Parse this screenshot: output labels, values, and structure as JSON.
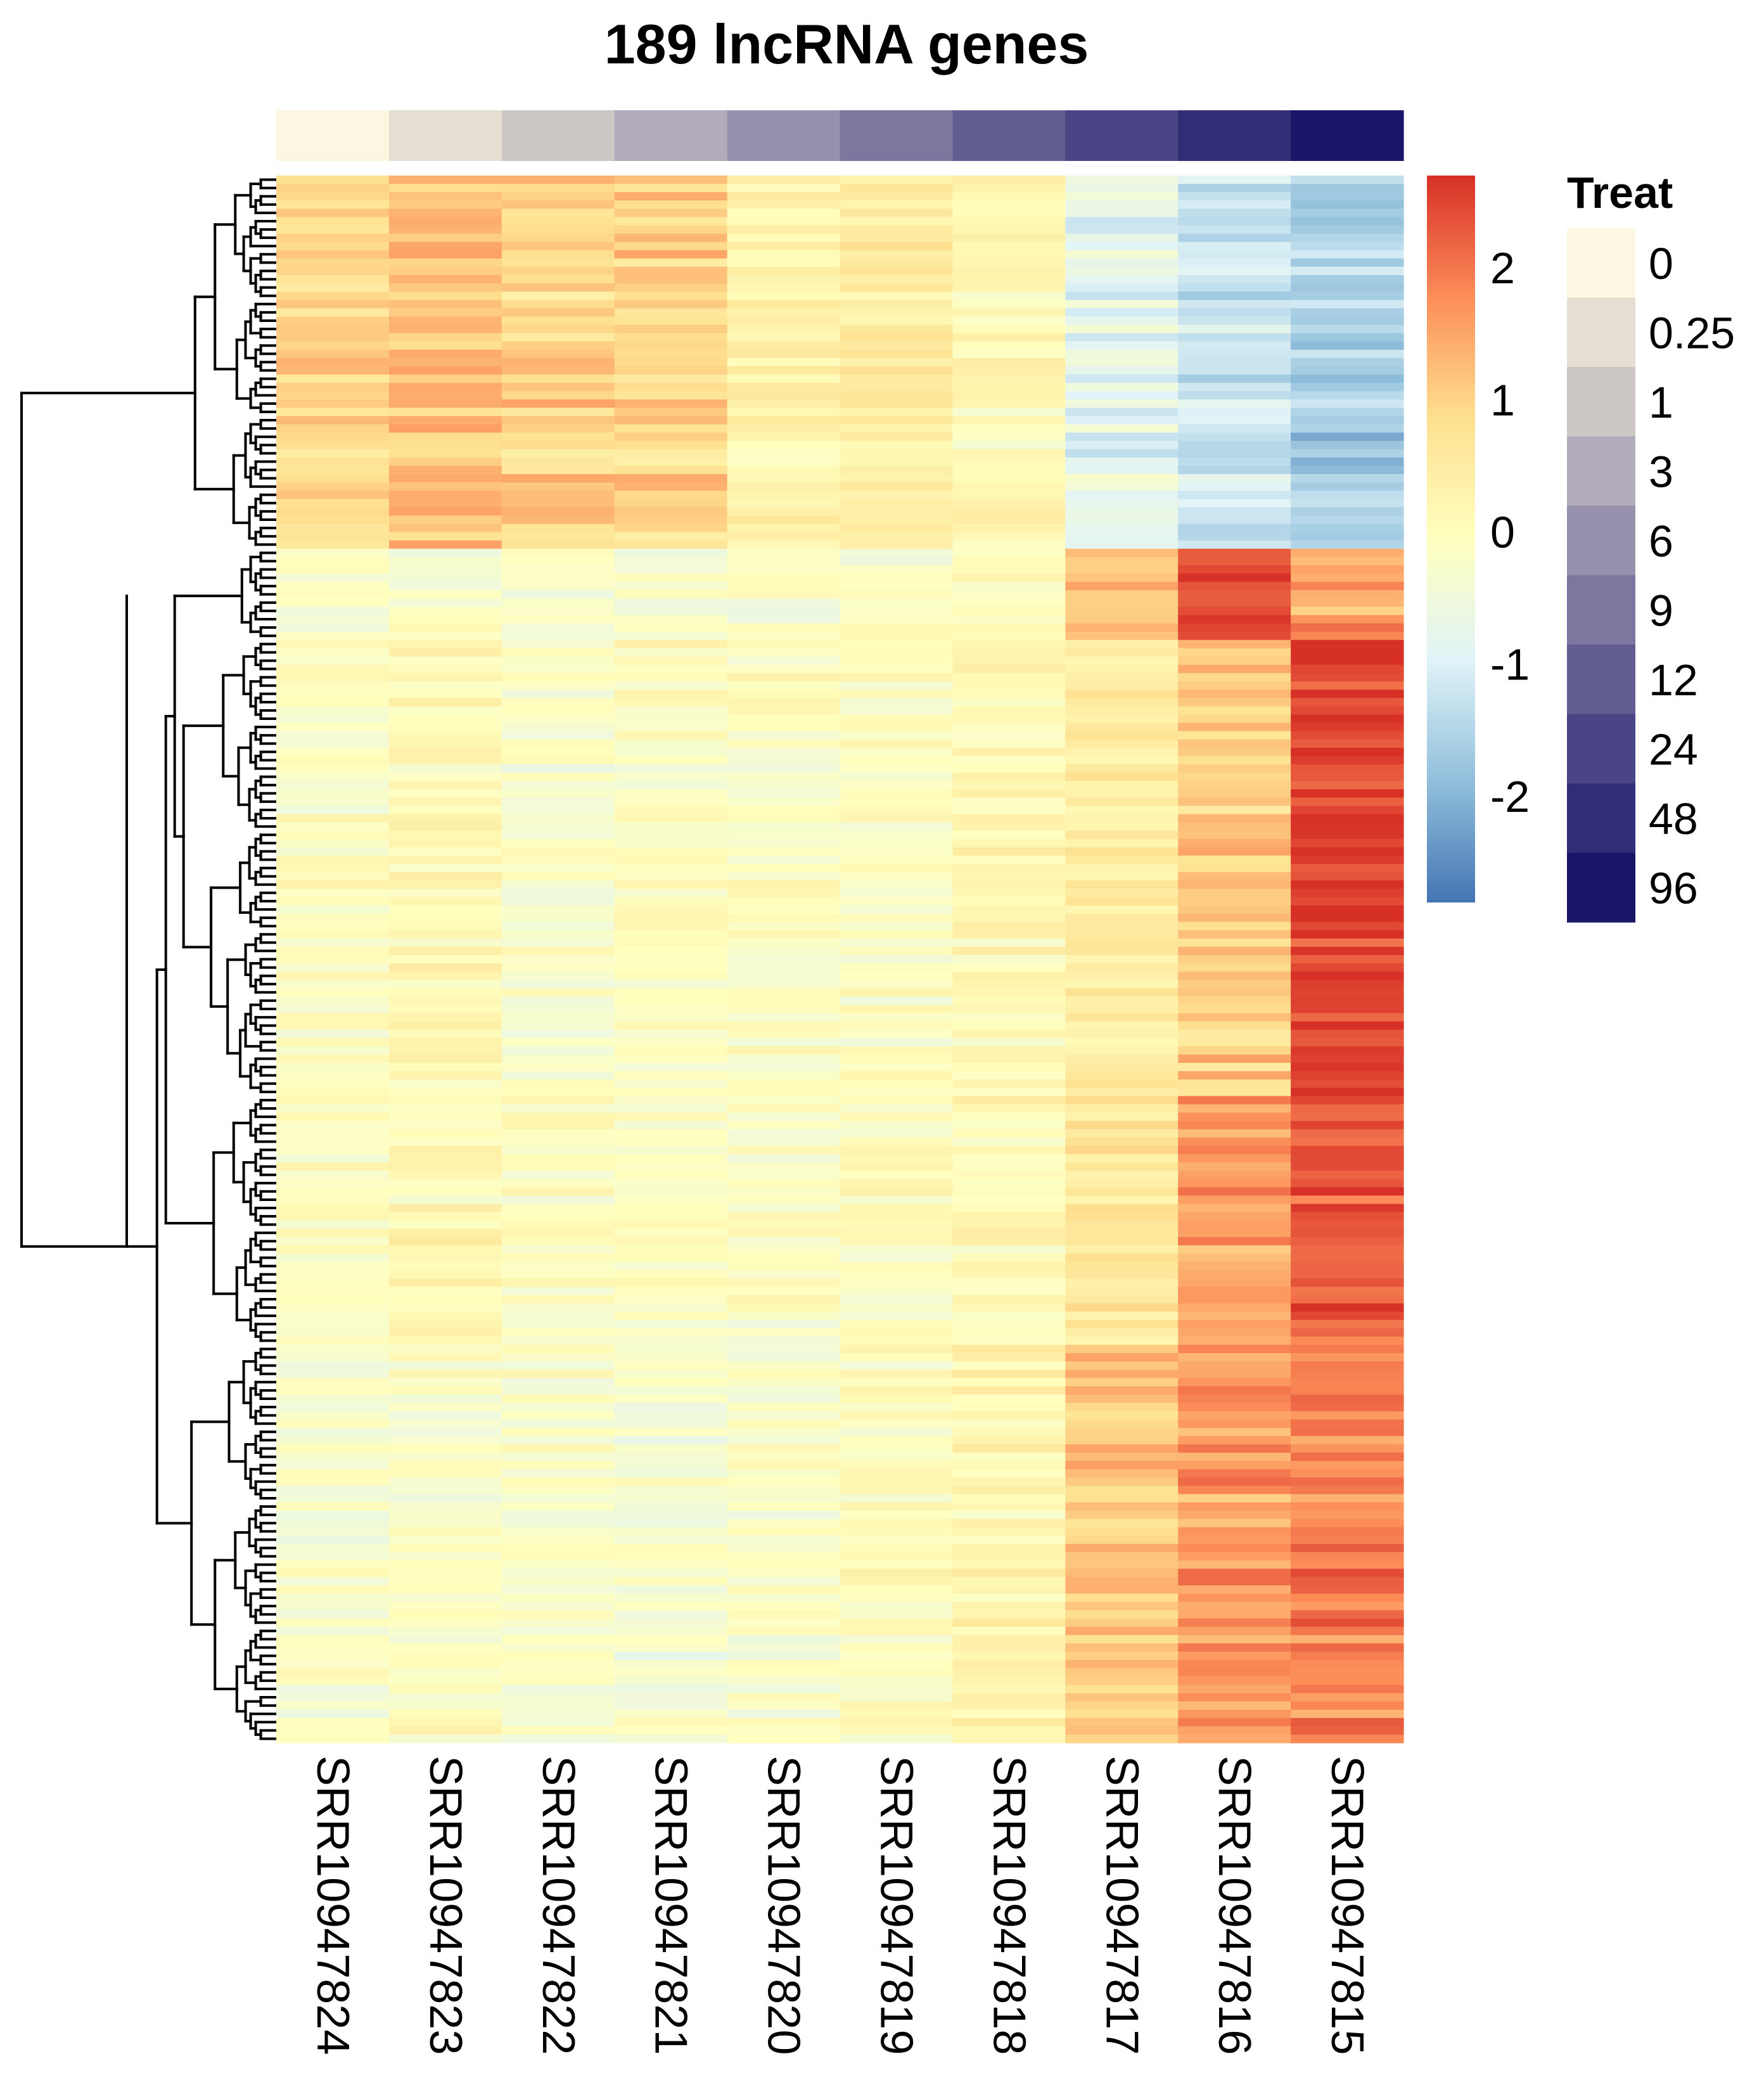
{
  "chart_data": {
    "type": "heatmap",
    "title": "189 lncRNA genes",
    "n_genes": 189,
    "samples": [
      "SRR10947824",
      "SRR10947823",
      "SRR10947822",
      "SRR10947821",
      "SRR10947820",
      "SRR10947819",
      "SRR10947818",
      "SRR10947817",
      "SRR10947816",
      "SRR10947815"
    ],
    "sample_treat": [
      "0",
      "0.25",
      "1",
      "3",
      "6",
      "9",
      "12",
      "24",
      "48",
      "96"
    ],
    "color_scale": {
      "stops": [
        "#4575b4",
        "#91bfdb",
        "#e0f3f8",
        "#ffffbf",
        "#fee090",
        "#fc8d59",
        "#d73027"
      ],
      "domain": [
        -2.8,
        2.7
      ],
      "ticks": [
        -2,
        -1,
        0,
        1,
        2
      ],
      "tick_labels": [
        "-2",
        "-1",
        "0",
        "1",
        "2"
      ]
    },
    "annotation_legend": {
      "title": "Treat",
      "levels": [
        "0",
        "0.25",
        "1",
        "3",
        "6",
        "9",
        "12",
        "24",
        "48",
        "96"
      ],
      "colors": [
        "#fcf7e0",
        "#e5dfd3",
        "#ccc6c4",
        "#b2abbb",
        "#9791ae",
        "#7d77a0",
        "#635e92",
        "#4a4585",
        "#312d77",
        "#1a1668"
      ]
    },
    "row_clusters": {
      "top_cluster": {
        "n_rows": 45,
        "mean_z": [
          0.9,
          1.2,
          0.95,
          1.0,
          0.25,
          0.5,
          0.1,
          -0.8,
          -1.2,
          -1.6
        ]
      },
      "bottom_subclusters": [
        {
          "n_rows": 11,
          "mean_z": [
            -0.3,
            -0.3,
            -0.3,
            -0.3,
            -0.3,
            -0.2,
            -0.1,
            1.2,
            2.4,
            1.5
          ]
        },
        {
          "n_rows": 55,
          "mean_z": [
            -0.1,
            0.1,
            -0.2,
            -0.1,
            -0.1,
            -0.1,
            0.1,
            0.5,
            1.0,
            2.5
          ]
        },
        {
          "n_rows": 30,
          "mean_z": [
            -0.1,
            0.1,
            -0.1,
            -0.1,
            -0.1,
            -0.1,
            0.1,
            0.6,
            1.5,
            2.3
          ]
        },
        {
          "n_rows": 48,
          "mean_z": [
            -0.2,
            -0.1,
            -0.2,
            -0.3,
            -0.2,
            0.0,
            0.2,
            1.2,
            1.6,
            1.9
          ]
        }
      ]
    },
    "dendrogram": {
      "side": "left",
      "clustered": "rows"
    }
  }
}
